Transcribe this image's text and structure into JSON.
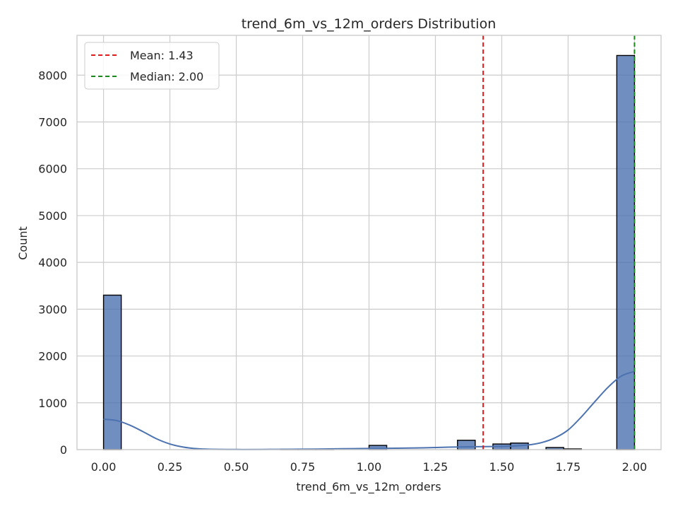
{
  "chart_data": {
    "type": "bar",
    "title": "trend_6m_vs_12m_orders Distribution",
    "xlabel": "trend_6m_vs_12m_orders",
    "ylabel": "Count",
    "xlim": [
      -0.1,
      2.1
    ],
    "ylim": [
      0,
      8850
    ],
    "x_ticks": [
      0.0,
      0.25,
      0.5,
      0.75,
      1.0,
      1.25,
      1.5,
      1.75,
      2.0
    ],
    "x_tick_labels": [
      "0.00",
      "0.25",
      "0.50",
      "0.75",
      "1.00",
      "1.25",
      "1.50",
      "1.75",
      "2.00"
    ],
    "y_ticks": [
      0,
      1000,
      2000,
      3000,
      4000,
      5000,
      6000,
      7000,
      8000
    ],
    "y_tick_labels": [
      "0",
      "1000",
      "2000",
      "3000",
      "4000",
      "5000",
      "6000",
      "7000",
      "8000"
    ],
    "grid": true,
    "bins": [
      {
        "x0": 0.0,
        "x1": 0.0667,
        "count": 3300
      },
      {
        "x0": 0.6667,
        "x1": 0.7333,
        "count": 8
      },
      {
        "x0": 0.7333,
        "x1": 0.8,
        "count": 6
      },
      {
        "x0": 0.8,
        "x1": 0.8667,
        "count": 5
      },
      {
        "x0": 1.0,
        "x1": 1.0667,
        "count": 90
      },
      {
        "x0": 1.3333,
        "x1": 1.4,
        "count": 200
      },
      {
        "x0": 1.4667,
        "x1": 1.5333,
        "count": 120
      },
      {
        "x0": 1.5333,
        "x1": 1.6,
        "count": 140
      },
      {
        "x0": 1.6667,
        "x1": 1.7333,
        "count": 45
      },
      {
        "x0": 1.7333,
        "x1": 1.8,
        "count": 15
      },
      {
        "x0": 1.9333,
        "x1": 2.0,
        "count": 8420
      }
    ],
    "kde": [
      [
        0.0,
        650
      ],
      [
        0.05,
        620
      ],
      [
        0.1,
        520
      ],
      [
        0.15,
        380
      ],
      [
        0.2,
        230
      ],
      [
        0.25,
        120
      ],
      [
        0.3,
        55
      ],
      [
        0.35,
        20
      ],
      [
        0.4,
        8
      ],
      [
        0.5,
        3
      ],
      [
        0.6,
        4
      ],
      [
        0.7,
        8
      ],
      [
        0.8,
        12
      ],
      [
        0.9,
        18
      ],
      [
        1.0,
        25
      ],
      [
        1.1,
        30
      ],
      [
        1.2,
        38
      ],
      [
        1.3,
        52
      ],
      [
        1.4,
        62
      ],
      [
        1.5,
        68
      ],
      [
        1.55,
        80
      ],
      [
        1.6,
        100
      ],
      [
        1.65,
        150
      ],
      [
        1.7,
        250
      ],
      [
        1.75,
        420
      ],
      [
        1.8,
        700
      ],
      [
        1.85,
        1020
      ],
      [
        1.9,
        1330
      ],
      [
        1.95,
        1570
      ],
      [
        2.0,
        1670
      ]
    ],
    "reference_lines": [
      {
        "label": "Mean: 1.43",
        "x": 1.43,
        "color": "#e41a1c",
        "style": "dashed"
      },
      {
        "label": "Median: 2.00",
        "x": 2.0,
        "color": "#1a8a1a",
        "style": "dashed"
      }
    ],
    "legend_position": "top-left",
    "colors": {
      "bar_fill": "#4c72b0",
      "bar_edge": "#000000",
      "kde_line": "#4c72b0",
      "grid": "#cccccc",
      "axes_edge": "#cccccc"
    }
  }
}
